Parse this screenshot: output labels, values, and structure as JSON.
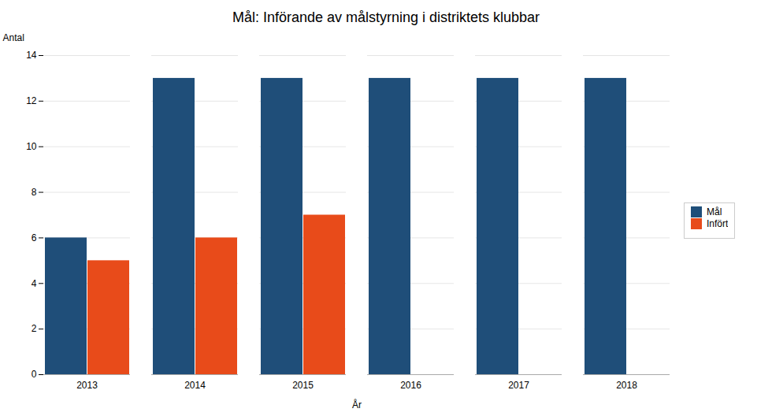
{
  "chart_data": {
    "type": "bar",
    "title": "Mål: Införande av målstyrning i distriktets klubbar",
    "xlabel": "År",
    "ylabel": "Antal",
    "categories": [
      "2013",
      "2014",
      "2015",
      "2016",
      "2017",
      "2018"
    ],
    "series": [
      {
        "name": "Mål",
        "color": "#1F4E79",
        "values": [
          6,
          13,
          13,
          13,
          13,
          13
        ]
      },
      {
        "name": "Infört",
        "color": "#E84B1A",
        "values": [
          5,
          6,
          7,
          0,
          0,
          0
        ]
      }
    ],
    "ylim": [
      0,
      14
    ],
    "yticks": [
      0,
      2,
      4,
      6,
      8,
      10,
      12,
      14
    ],
    "grid": true,
    "legend": "right"
  }
}
